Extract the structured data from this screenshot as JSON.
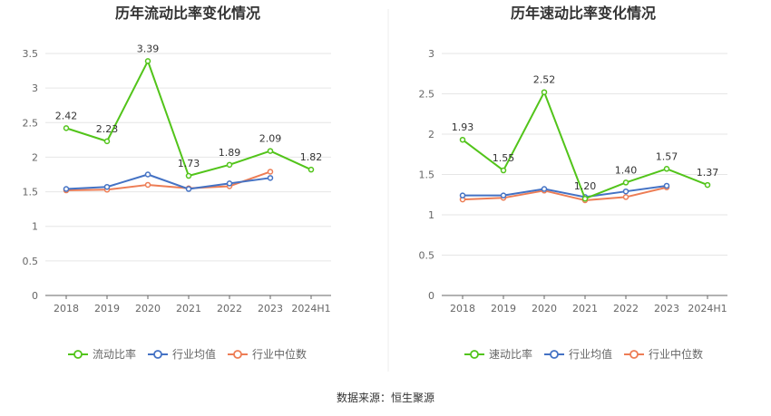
{
  "source": "数据来源：恒生聚源",
  "chart_data": [
    {
      "type": "line",
      "title": "历年流动比率变化情况",
      "categories": [
        "2018",
        "2019",
        "2020",
        "2021",
        "2022",
        "2023",
        "2024H1"
      ],
      "ylim": [
        0,
        3.5
      ],
      "yticks": [
        "0",
        "0.5",
        "1",
        "1.5",
        "2",
        "2.5",
        "3",
        "3.5"
      ],
      "ytick_values": [
        0,
        0.5,
        1,
        1.5,
        2,
        2.5,
        3,
        3.5
      ],
      "grid": true,
      "legend_position": "bottom",
      "series": [
        {
          "name": "流动比率",
          "color": "#52c41a",
          "labeled": true,
          "labels": [
            "2.42",
            "2.23",
            "3.39",
            "1.73",
            "1.89",
            "2.09",
            "1.82"
          ],
          "values": [
            2.42,
            2.23,
            3.39,
            1.73,
            1.89,
            2.09,
            1.82
          ]
        },
        {
          "name": "行业均值",
          "color": "#4472c4",
          "labeled": false,
          "values": [
            1.54,
            1.57,
            1.75,
            1.54,
            1.62,
            1.7,
            null
          ]
        },
        {
          "name": "行业中位数",
          "color": "#ed7d55",
          "labeled": false,
          "values": [
            1.52,
            1.53,
            1.6,
            1.55,
            1.58,
            1.79,
            null
          ]
        }
      ]
    },
    {
      "type": "line",
      "title": "历年速动比率变化情况",
      "categories": [
        "2018",
        "2019",
        "2020",
        "2021",
        "2022",
        "2023",
        "2024H1"
      ],
      "ylim": [
        0,
        3
      ],
      "yticks": [
        "0",
        "0.5",
        "1",
        "1.5",
        "2",
        "2.5",
        "3"
      ],
      "ytick_values": [
        0,
        0.5,
        1,
        1.5,
        2,
        2.5,
        3
      ],
      "grid": true,
      "legend_position": "bottom",
      "series": [
        {
          "name": "速动比率",
          "color": "#52c41a",
          "labeled": true,
          "labels": [
            "1.93",
            "1.55",
            "2.52",
            "1.20",
            "1.40",
            "1.57",
            "1.37"
          ],
          "values": [
            1.93,
            1.55,
            2.52,
            1.2,
            1.4,
            1.57,
            1.37
          ]
        },
        {
          "name": "行业均值",
          "color": "#4472c4",
          "labeled": false,
          "values": [
            1.24,
            1.24,
            1.32,
            1.22,
            1.29,
            1.36,
            null
          ]
        },
        {
          "name": "行业中位数",
          "color": "#ed7d55",
          "labeled": false,
          "values": [
            1.19,
            1.21,
            1.3,
            1.18,
            1.22,
            1.34,
            null
          ]
        }
      ]
    }
  ]
}
